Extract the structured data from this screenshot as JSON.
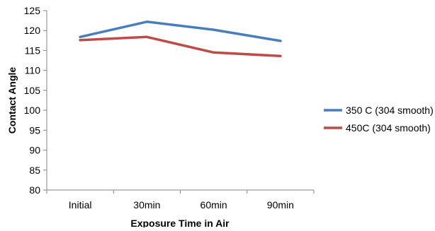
{
  "chart_data": {
    "type": "line",
    "title": "",
    "xlabel": "Exposure Time in Air",
    "ylabel": "Contact Angle",
    "categories": [
      "Initial",
      "30min",
      "60min",
      "90min"
    ],
    "ylim": [
      80,
      125
    ],
    "yticks": [
      80,
      85,
      90,
      95,
      100,
      105,
      110,
      115,
      120,
      125
    ],
    "grid": false,
    "legend_position": "right",
    "series": [
      {
        "name": "350 C (304 smooth)",
        "color": "#4a7ebb",
        "values": [
          118.4,
          122.2,
          120.2,
          117.4
        ]
      },
      {
        "name": "450C (304 smooth)",
        "color": "#be4b48",
        "values": [
          117.6,
          118.4,
          114.5,
          113.6
        ]
      }
    ]
  }
}
